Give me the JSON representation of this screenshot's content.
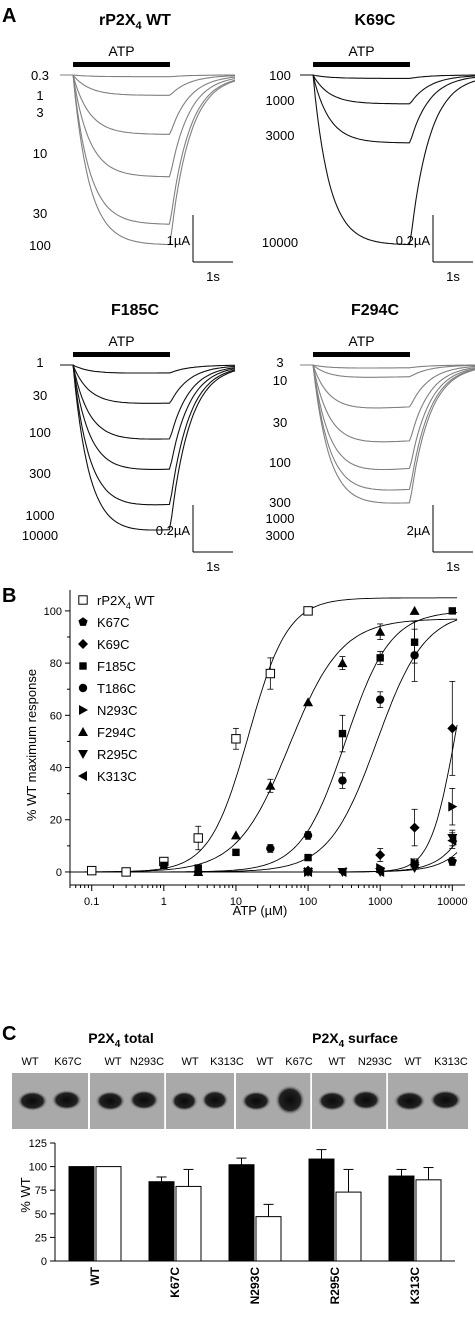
{
  "panel_letters": {
    "a": "A",
    "b": "B",
    "c": "C"
  },
  "panel_a": {
    "atp_label": "ATP",
    "time_scale": "1s",
    "traces": [
      {
        "title": "rP2X",
        "title_sub": "4",
        "title_suffix": " WT",
        "current_scale": "1µA",
        "concentrations": [
          "0.3",
          "1",
          "3",
          "10",
          "30",
          "100"
        ],
        "color": "#808080"
      },
      {
        "title": "K69C",
        "title_sub": "",
        "title_suffix": "",
        "current_scale": "0.2µA",
        "concentrations": [
          "100",
          "1000",
          "3000",
          "10000"
        ],
        "color": "#111111"
      },
      {
        "title": "F185C",
        "title_sub": "",
        "title_suffix": "",
        "current_scale": "0.2µA",
        "concentrations": [
          "1",
          "30",
          "100",
          "300",
          "1000",
          "10000"
        ],
        "color": "#111111"
      },
      {
        "title": "F294C",
        "title_sub": "",
        "title_suffix": "",
        "current_scale": "2µA",
        "concentrations": [
          "3",
          "10",
          "30",
          "100",
          "300",
          "1000",
          "3000"
        ],
        "color": "#808080"
      }
    ]
  },
  "chart_data": [
    {
      "type": "scatter",
      "xlabel": "ATP (µM)",
      "ylabel": "% WT maximum response",
      "xscale": "log",
      "xlim": [
        0.05,
        15000
      ],
      "ylim": [
        -5,
        108
      ],
      "xticks": [
        "0.1",
        "1",
        "10",
        "100",
        "1000",
        "10000"
      ],
      "yticks": [
        "0",
        "20",
        "40",
        "60",
        "80",
        "100"
      ],
      "legend_position": "top-left",
      "series": [
        {
          "name": "rP2X4 WT",
          "name_main": "rP2X",
          "name_sub": "4",
          "name_suffix": " WT",
          "marker": "square-open",
          "x": [
            0.1,
            0.3,
            1,
            3,
            10,
            30,
            100
          ],
          "y": [
            0.5,
            0,
            4,
            13,
            51,
            76,
            100
          ],
          "err": [
            0,
            0,
            1.5,
            4.5,
            4,
            6,
            0
          ],
          "fit": {
            "ec50": 15,
            "top": 105,
            "hill": 1.6
          }
        },
        {
          "name": "K67C",
          "marker": "pentagon",
          "x": [
            10000
          ],
          "y": [
            4
          ],
          "err": [
            1.5
          ]
        },
        {
          "name": "K69C",
          "marker": "diamond",
          "x": [
            100,
            1000,
            3000,
            10000
          ],
          "y": [
            0.5,
            6.5,
            17,
            55
          ],
          "err": [
            0,
            2.5,
            7,
            18
          ],
          "fit": {
            "ec50": 11000,
            "top": 105,
            "hill": 2.5
          }
        },
        {
          "name": "F185C",
          "marker": "square",
          "x": [
            1,
            3,
            10,
            100,
            300,
            1000,
            3000,
            10000
          ],
          "y": [
            2.5,
            1.5,
            7.5,
            5.5,
            53,
            82,
            88,
            100
          ],
          "err": [
            0,
            0,
            0,
            0,
            7,
            2.5,
            8,
            0
          ],
          "fit": {
            "ec50": 330,
            "top": 100,
            "hill": 1.4
          }
        },
        {
          "name": "T186C",
          "marker": "circle",
          "x": [
            3,
            30,
            100,
            300,
            1000,
            3000
          ],
          "y": [
            0,
            9,
            14,
            35,
            66,
            83
          ],
          "err": [
            0,
            1.5,
            1.5,
            3,
            3,
            10
          ],
          "fit": {
            "ec50": 900,
            "top": 100,
            "hill": 1.3
          }
        },
        {
          "name": "N293C",
          "marker": "triangle-right",
          "x": [
            100,
            1000,
            3000,
            10000
          ],
          "y": [
            0,
            1.5,
            3.5,
            25
          ],
          "err": [
            0,
            0,
            1.5,
            7
          ]
        },
        {
          "name": "F294C",
          "marker": "triangle-up",
          "x": [
            3,
            10,
            30,
            100,
            300,
            1000,
            3000
          ],
          "y": [
            0,
            14,
            33,
            65,
            80,
            92,
            100
          ],
          "err": [
            0,
            0,
            2.5,
            0,
            2.5,
            3,
            0
          ],
          "fit": {
            "ec50": 55,
            "top": 97,
            "hill": 1.2
          }
        },
        {
          "name": "R295C",
          "marker": "triangle-down",
          "x": [
            100,
            300,
            1000,
            3000,
            10000
          ],
          "y": [
            0,
            0,
            0,
            1.5,
            13
          ],
          "err": [
            0,
            0,
            0,
            0,
            3
          ]
        },
        {
          "name": "K313C",
          "marker": "triangle-left",
          "x": [
            100,
            300,
            1000,
            3000,
            10000
          ],
          "y": [
            0,
            0,
            0,
            3,
            12
          ],
          "err": [
            0,
            0,
            0,
            0,
            3
          ]
        }
      ],
      "extra_fits": [
        {
          "ec50": 40000,
          "top": 110,
          "hill": 1.7
        },
        {
          "ec50": 60000,
          "top": 110,
          "hill": 1.6
        }
      ]
    },
    {
      "type": "bar",
      "ylabel": "% WT",
      "ylim": [
        0,
        125
      ],
      "yticks": [
        "0",
        "25",
        "50",
        "75",
        "100",
        "125"
      ],
      "categories": [
        "WT",
        "K67C",
        "N293C",
        "R295C",
        "K313C"
      ],
      "series": [
        {
          "name": "P2X4 total",
          "fill": "#000000",
          "values": [
            100,
            84,
            102,
            108,
            90
          ],
          "err": [
            0,
            5,
            7,
            10,
            7
          ]
        },
        {
          "name": "P2X4 surface",
          "fill": "#ffffff",
          "values": [
            100,
            79,
            47,
            73,
            86
          ],
          "err": [
            0,
            18,
            13,
            24,
            13
          ]
        }
      ]
    }
  ],
  "panel_c": {
    "blot_title_total": "P2X",
    "blot_title_total_sub": "4",
    "blot_title_total_suffix": " total",
    "blot_title_surface": "P2X",
    "blot_title_surface_sub": "4",
    "blot_title_surface_suffix": " surface",
    "lane_labels": [
      "WT",
      "K67C",
      "WT",
      "N293C",
      "WT",
      "K313C",
      "WT",
      "K67C",
      "WT",
      "N293C",
      "WT",
      "K313C"
    ]
  }
}
